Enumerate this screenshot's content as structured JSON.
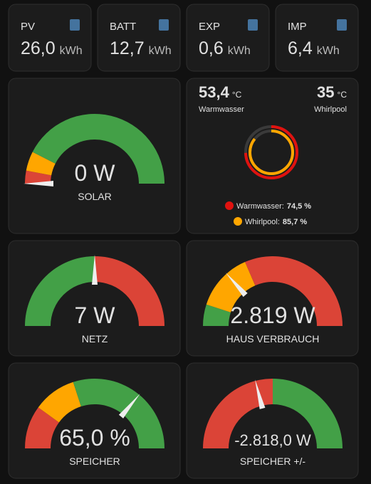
{
  "stats": [
    {
      "label": "PV",
      "value": "26,0",
      "unit": "kWh"
    },
    {
      "label": "BATT",
      "value": "12,7",
      "unit": "kWh"
    },
    {
      "label": "EXP",
      "value": "0,6",
      "unit": "kWh"
    },
    {
      "label": "IMP",
      "value": "6,4",
      "unit": "kWh"
    }
  ],
  "temps": {
    "items": [
      {
        "value": "53,4",
        "unit": "°C",
        "name": "Warmwasser"
      },
      {
        "value": "35",
        "unit": "°C",
        "name": "Whirlpool"
      }
    ],
    "rings": [
      {
        "name": "Warmwasser:",
        "value": 74.5,
        "label": "74,5 %",
        "color": "#e0120f"
      },
      {
        "name": "Whirlpool:",
        "value": 85.7,
        "label": "85,7 %",
        "color": "#ffa600"
      }
    ]
  },
  "gauges": [
    {
      "value": "0 W",
      "name": "SOLAR"
    },
    {
      "value": "7 W",
      "name": "NETZ"
    },
    {
      "value": "2.819 W",
      "name": "HAUS VERBRAUCH"
    },
    {
      "value": "65,0 %",
      "name": "SPEICHER"
    },
    {
      "value": "-2.818,0 W",
      "name": "SPEICHER +/-"
    }
  ]
}
